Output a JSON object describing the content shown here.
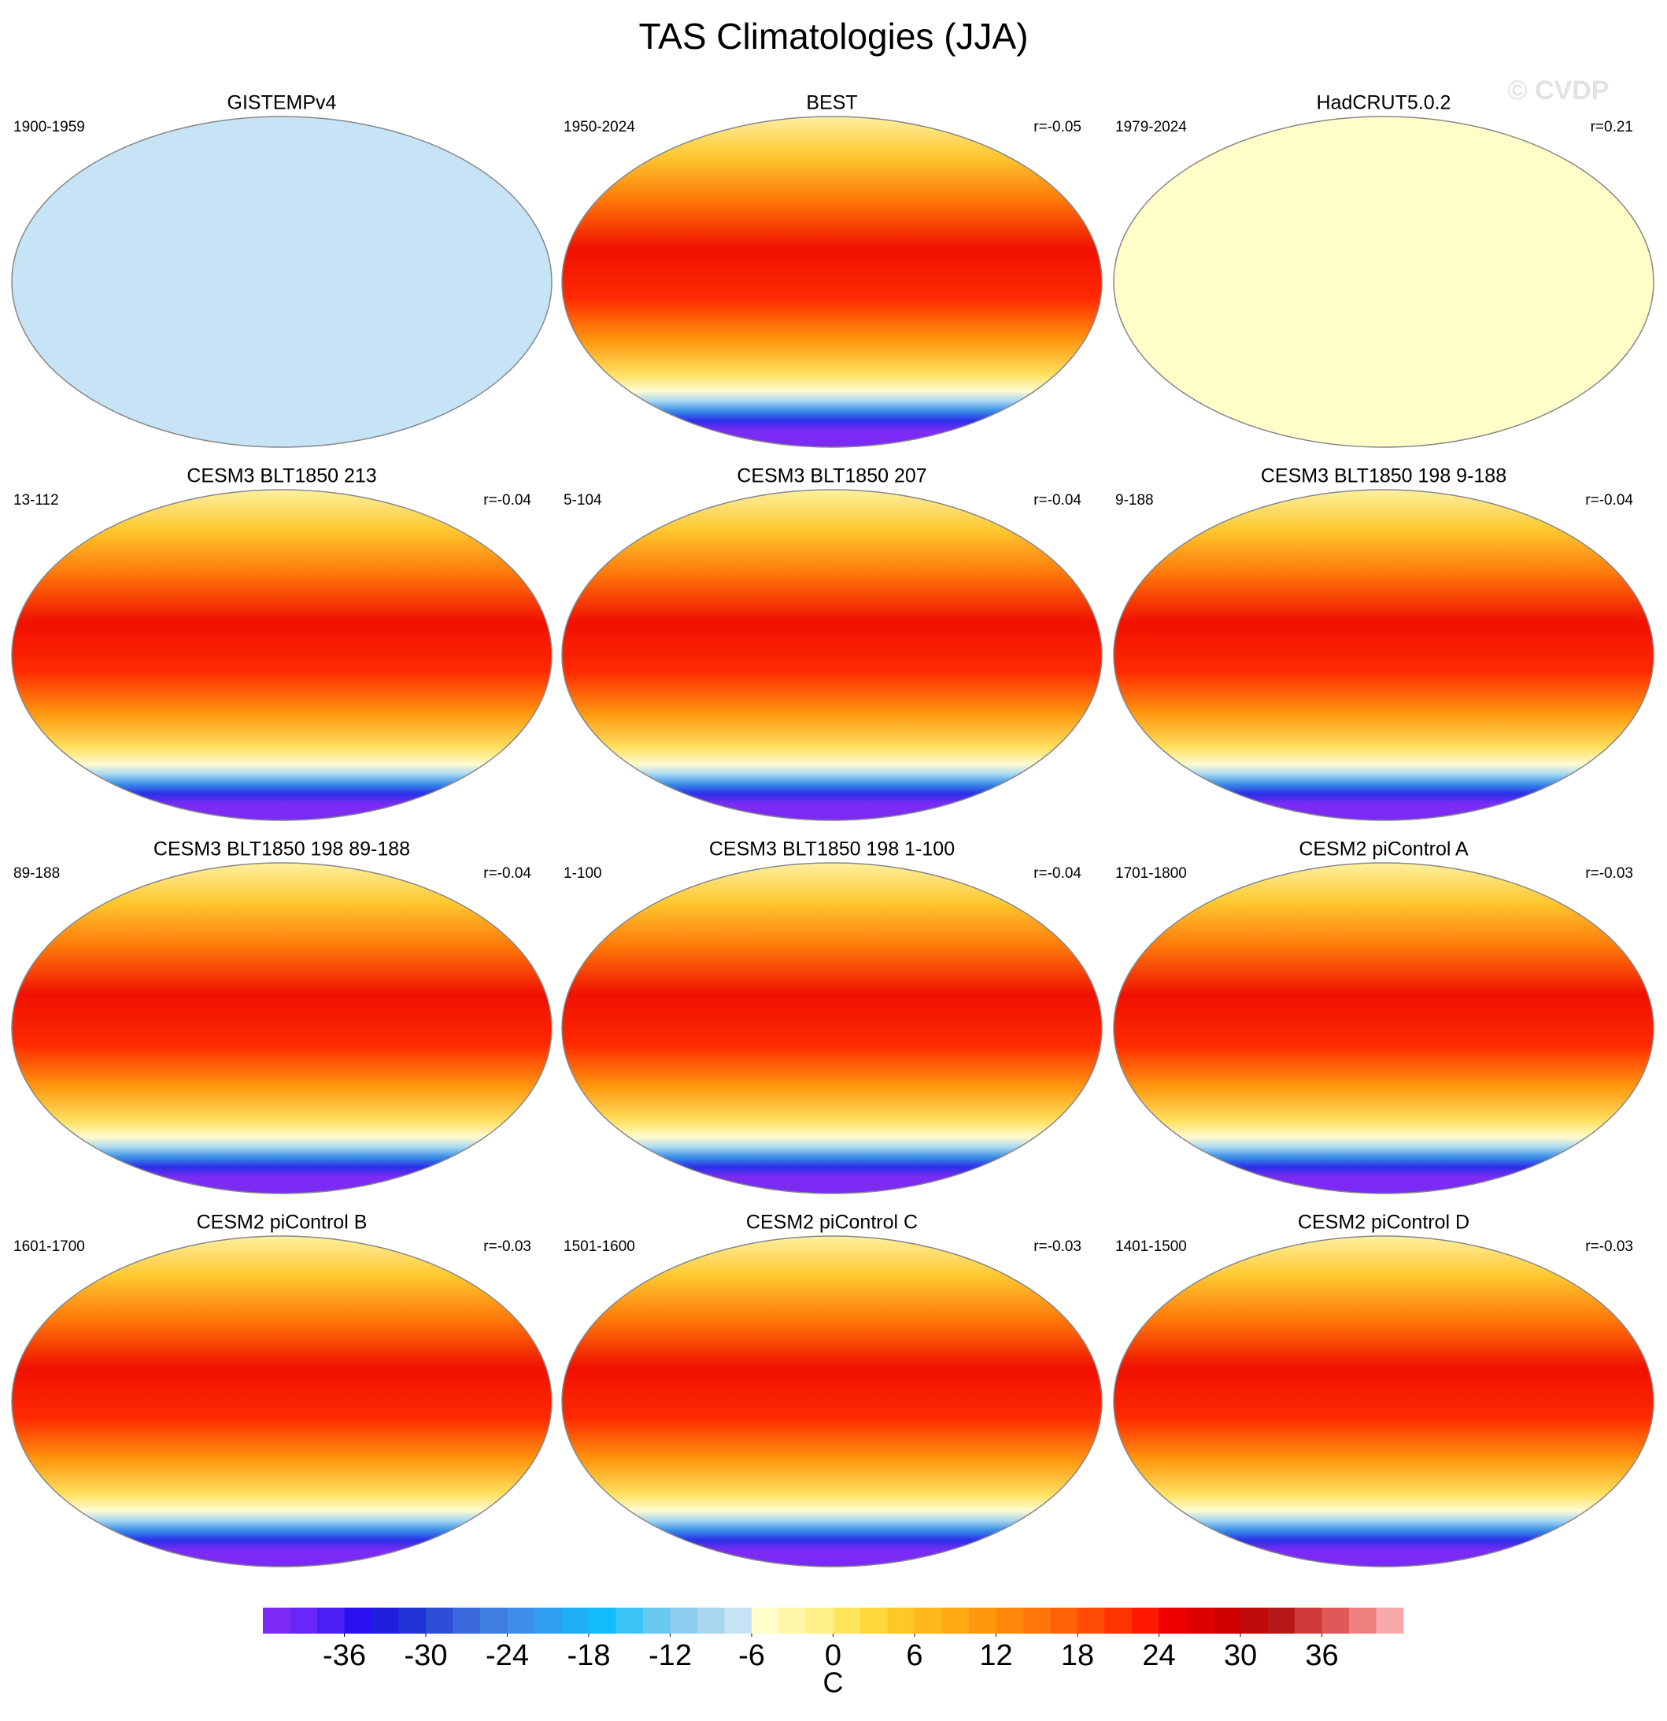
{
  "title": "TAS Climatologies (JJA)",
  "watermark": "© CVDP",
  "panels": [
    {
      "title": "GISTEMPv4",
      "period": "1900-1959"
    },
    {
      "title": "BEST",
      "period": "1950-2024",
      "r": "r=-0.05"
    },
    {
      "title": "HadCRUT5.0.2",
      "period": "1979-2024",
      "r": "r=0.21"
    },
    {
      "title": "CESM3 BLT1850 213",
      "period": "13-112",
      "r": "r=-0.04"
    },
    {
      "title": "CESM3 BLT1850 207",
      "period": "5-104",
      "r": "r=-0.04"
    },
    {
      "title": "CESM3 BLT1850 198 9-188",
      "period": "9-188",
      "r": "r=-0.04"
    },
    {
      "title": "CESM3 BLT1850 198 89-188",
      "period": "89-188",
      "r": "r=-0.04"
    },
    {
      "title": "CESM3 BLT1850 198 1-100",
      "period": "1-100",
      "r": "r=-0.04"
    },
    {
      "title": "CESM2 piControl A",
      "period": "1701-1800",
      "r": "r=-0.03"
    },
    {
      "title": "CESM2 piControl B",
      "period": "1601-1700",
      "r": "r=-0.03"
    },
    {
      "title": "CESM2 piControl C",
      "period": "1501-1600",
      "r": "r=-0.03"
    },
    {
      "title": "CESM2 piControl D",
      "period": "1401-1500",
      "r": "r=-0.03"
    }
  ],
  "colorbar": {
    "label": "C",
    "lim": [
      -42,
      42
    ],
    "ticks": [
      -36,
      -30,
      -24,
      -18,
      -12,
      -6,
      0,
      6,
      12,
      18,
      24,
      30,
      36
    ],
    "colors": [
      "#7b2bf5",
      "#6a26f8",
      "#4b1ef5",
      "#2a10f0",
      "#1f1fe0",
      "#2233d8",
      "#2d4fd8",
      "#3a68dd",
      "#3f7ee0",
      "#3c8ee8",
      "#2f9ef0",
      "#20aef5",
      "#10bdfa",
      "#3cc4f5",
      "#68c8f0",
      "#8fcdee",
      "#aad6f0",
      "#c6e4f5",
      "#fffdc8",
      "#fff6a8",
      "#fff08a",
      "#ffe45c",
      "#ffd83a",
      "#ffc825",
      "#ffb81a",
      "#ffa812",
      "#ff980c",
      "#ff880a",
      "#ff7508",
      "#ff6206",
      "#ff4c04",
      "#ff3202",
      "#ff1800",
      "#f00000",
      "#e00000",
      "#cf0000",
      "#c00a0a",
      "#b81818",
      "#d03a3a",
      "#e05858",
      "#ee8080",
      "#f8a8a8"
    ]
  }
}
